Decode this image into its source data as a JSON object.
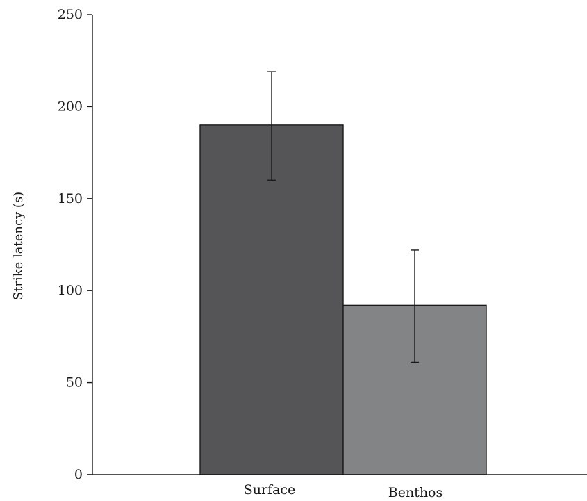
{
  "chart_data": {
    "type": "bar",
    "title": "",
    "xlabel": "",
    "ylabel": "Strike latency (s)",
    "ylim": [
      0,
      250
    ],
    "yticks": [
      0,
      50,
      100,
      150,
      200,
      250
    ],
    "ytick_labels": [
      "0",
      "50",
      "100",
      "150",
      "200",
      "250"
    ],
    "categories": [
      "Surface",
      "Benthos"
    ],
    "values": [
      190,
      92
    ],
    "error_low": [
      160,
      61
    ],
    "error_high": [
      219,
      122
    ],
    "colors": [
      "#555557",
      "#838486"
    ],
    "grid": false,
    "legend": "none"
  }
}
